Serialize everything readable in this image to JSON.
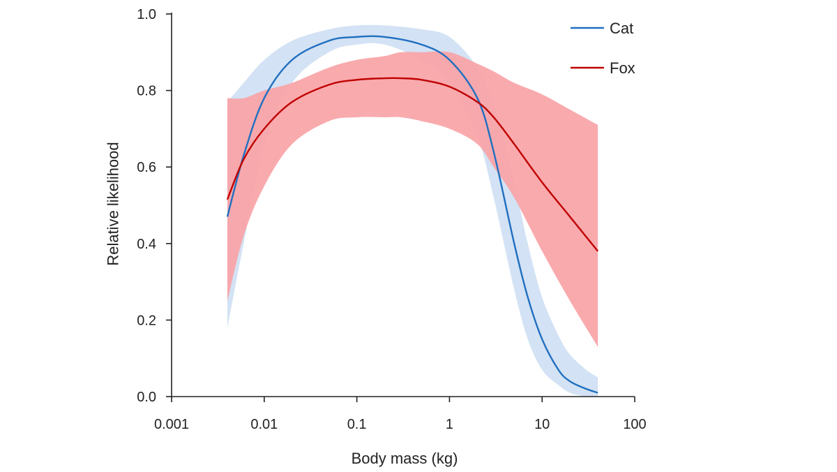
{
  "chart_data": {
    "type": "line",
    "title": "",
    "xlabel": "Body mass (kg)",
    "ylabel": "Relative likelihood",
    "xscale": "log",
    "xlim": [
      0.001,
      100
    ],
    "ylim": [
      0.0,
      1.0
    ],
    "x_ticks": [
      0.001,
      0.01,
      0.1,
      1,
      10,
      100
    ],
    "x_tick_labels": [
      "0.001",
      "0.01",
      "0.1",
      "1",
      "10",
      "100"
    ],
    "y_ticks": [
      0.0,
      0.2,
      0.4,
      0.6,
      0.8,
      1.0
    ],
    "y_tick_labels": [
      "0.0",
      "0.2",
      "0.4",
      "0.6",
      "0.8",
      "1.0"
    ],
    "grid": false,
    "legend_position": "top-right",
    "series": [
      {
        "name": "Cat",
        "color": "#1f6fc0",
        "band_color": "#d3e2f4",
        "x": [
          0.004,
          0.006,
          0.01,
          0.02,
          0.05,
          0.1,
          0.2,
          0.5,
          1,
          2,
          3,
          5,
          7,
          10,
          15,
          20,
          30,
          40
        ],
        "y": [
          0.47,
          0.63,
          0.78,
          0.88,
          0.93,
          0.94,
          0.94,
          0.92,
          0.88,
          0.78,
          0.64,
          0.4,
          0.26,
          0.15,
          0.07,
          0.04,
          0.02,
          0.01
        ],
        "lower": [
          0.18,
          0.4,
          0.66,
          0.82,
          0.9,
          0.92,
          0.92,
          0.88,
          0.82,
          0.68,
          0.52,
          0.28,
          0.15,
          0.07,
          0.03,
          0.01,
          0.0,
          0.0
        ],
        "upper": [
          0.77,
          0.82,
          0.88,
          0.93,
          0.96,
          0.97,
          0.97,
          0.96,
          0.94,
          0.86,
          0.76,
          0.56,
          0.4,
          0.26,
          0.16,
          0.11,
          0.07,
          0.05
        ]
      },
      {
        "name": "Fox",
        "color": "#c00000",
        "band_color": "#f9a3a6",
        "x": [
          0.004,
          0.006,
          0.01,
          0.02,
          0.05,
          0.1,
          0.2,
          0.3,
          0.5,
          1,
          2,
          3,
          5,
          10,
          20,
          40
        ],
        "y": [
          0.515,
          0.62,
          0.7,
          0.77,
          0.815,
          0.828,
          0.832,
          0.832,
          0.828,
          0.81,
          0.77,
          0.73,
          0.66,
          0.56,
          0.47,
          0.38
        ],
        "lower": [
          0.25,
          0.42,
          0.55,
          0.66,
          0.72,
          0.73,
          0.73,
          0.73,
          0.72,
          0.7,
          0.66,
          0.6,
          0.52,
          0.38,
          0.25,
          0.13
        ],
        "upper": [
          0.78,
          0.78,
          0.8,
          0.82,
          0.86,
          0.88,
          0.89,
          0.9,
          0.9,
          0.9,
          0.87,
          0.85,
          0.82,
          0.79,
          0.75,
          0.71
        ]
      }
    ]
  }
}
